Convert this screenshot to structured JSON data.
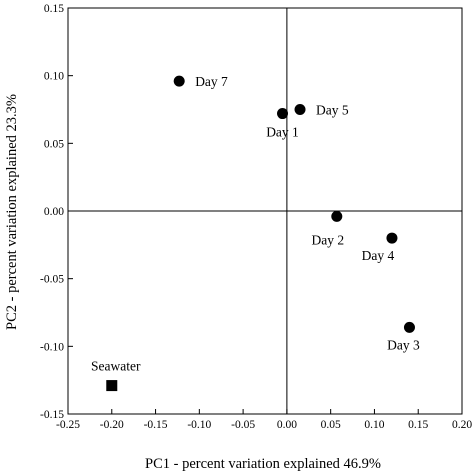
{
  "chart_data": {
    "type": "scatter",
    "title": "",
    "xlabel": "PC1 - percent variation explained 46.9%",
    "ylabel": "PC2 - percent variation explained 23.3%",
    "xlim": [
      -0.25,
      0.2
    ],
    "ylim": [
      -0.15,
      0.15
    ],
    "xticks": [
      "-0.25",
      "-0.20",
      "-0.15",
      "-0.10",
      "-0.05",
      "0.00",
      "0.05",
      "0.10",
      "0.15",
      "0.20"
    ],
    "yticks": [
      "-0.15",
      "-0.10",
      "-0.05",
      "0.00",
      "0.05",
      "0.10",
      "0.15"
    ],
    "grid": false,
    "reference_lines": {
      "x": 0,
      "y": 0
    },
    "points": [
      {
        "label": "Day 7",
        "x": -0.123,
        "y": 0.096,
        "marker": "circle"
      },
      {
        "label": "Day 1",
        "x": -0.005,
        "y": 0.072,
        "marker": "circle"
      },
      {
        "label": "Day 5",
        "x": 0.015,
        "y": 0.075,
        "marker": "circle"
      },
      {
        "label": "Day 2",
        "x": 0.057,
        "y": -0.004,
        "marker": "circle"
      },
      {
        "label": "Day 4",
        "x": 0.12,
        "y": -0.02,
        "marker": "circle"
      },
      {
        "label": "Day 3",
        "x": 0.14,
        "y": -0.086,
        "marker": "circle"
      },
      {
        "label": "Seawater",
        "x": -0.2,
        "y": -0.129,
        "marker": "square"
      }
    ]
  }
}
